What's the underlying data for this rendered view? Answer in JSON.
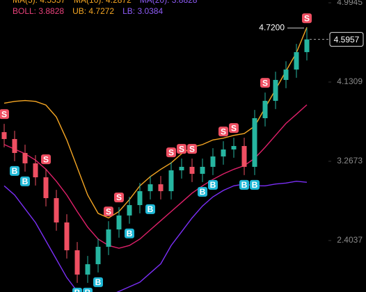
{
  "chart_data": {
    "type": "candlestick",
    "legend_rows": [
      [
        {
          "text": "MA(5): 4.5557",
          "color": "#f5a623"
        },
        {
          "text": "MA(10): 4.2872",
          "color": "#f5a623"
        },
        {
          "text": "MA(20): 3.8828",
          "color": "#8e5cf7"
        }
      ],
      [
        {
          "text": "BOLL: 3.8828",
          "color": "#e8417a"
        },
        {
          "text": "UB: 4.7272",
          "color": "#f5a623"
        },
        {
          "text": "LB: 3.0384",
          "color": "#8e5cf7"
        }
      ]
    ],
    "open": [
      3.585,
      3.51,
      3.358,
      3.245,
      3.093,
      2.866,
      2.601,
      2.298,
      2.033,
      2.146,
      2.336,
      2.525,
      2.677,
      2.79,
      2.942,
      3.017,
      2.942,
      3.169,
      3.207,
      3.131,
      3.207,
      3.32,
      3.396,
      3.434,
      3.207,
      3.737,
      3.926,
      4.154,
      4.267,
      4.457
    ],
    "high": [
      3.675,
      3.6,
      3.448,
      3.335,
      3.183,
      2.956,
      2.691,
      2.388,
      2.236,
      2.426,
      2.615,
      2.767,
      2.88,
      3.032,
      3.107,
      3.107,
      3.259,
      3.297,
      3.297,
      3.297,
      3.41,
      3.486,
      3.524,
      3.524,
      3.827,
      4.016,
      4.244,
      4.357,
      4.547,
      4.72
    ],
    "low": [
      3.42,
      3.268,
      3.155,
      3.003,
      2.776,
      2.511,
      2.208,
      1.943,
      1.943,
      2.056,
      2.246,
      2.435,
      2.587,
      2.7,
      2.852,
      2.852,
      2.852,
      3.079,
      3.041,
      3.041,
      3.117,
      3.23,
      3.306,
      3.117,
      3.117,
      3.647,
      3.836,
      4.064,
      4.177,
      4.367
    ],
    "close": [
      3.51,
      3.358,
      3.245,
      3.093,
      2.866,
      2.601,
      2.298,
      2.033,
      2.146,
      2.336,
      2.525,
      2.677,
      2.79,
      2.942,
      3.017,
      2.942,
      3.169,
      3.207,
      3.131,
      3.207,
      3.32,
      3.396,
      3.434,
      3.207,
      3.737,
      3.926,
      4.154,
      4.267,
      4.457,
      4.5957
    ],
    "up_color": "#26b5a0",
    "down_color": "#ef4f62",
    "series": [
      {
        "name": "UB",
        "color": "#f5a623",
        "values": [
          3.9,
          3.92,
          3.93,
          3.92,
          3.88,
          3.75,
          3.5,
          3.2,
          2.9,
          2.7,
          2.65,
          2.72,
          2.85,
          3.0,
          3.1,
          3.18,
          3.25,
          3.35,
          3.42,
          3.45,
          3.5,
          3.52,
          3.55,
          3.57,
          3.65,
          3.85,
          4.05,
          4.25,
          4.45,
          4.7272
        ]
      },
      {
        "name": "BOLL",
        "color": "#e0206a",
        "values": [
          3.45,
          3.4,
          3.35,
          3.28,
          3.18,
          3.05,
          2.9,
          2.72,
          2.55,
          2.42,
          2.35,
          2.32,
          2.35,
          2.42,
          2.52,
          2.62,
          2.72,
          2.82,
          2.92,
          3.0,
          3.07,
          3.13,
          3.18,
          3.22,
          3.3,
          3.42,
          3.55,
          3.68,
          3.78,
          3.8828
        ]
      },
      {
        "name": "LB",
        "color": "#7b2ff7",
        "values": [
          3.0,
          2.9,
          2.75,
          2.6,
          2.4,
          2.2,
          2.0,
          1.85,
          1.8,
          1.78,
          1.8,
          1.85,
          1.9,
          1.95,
          2.05,
          2.15,
          2.35,
          2.5,
          2.65,
          2.78,
          2.88,
          2.95,
          3.0,
          3.02,
          3.0,
          3.0,
          3.02,
          3.03,
          3.05,
          3.0384
        ]
      }
    ],
    "signals": [
      "S",
      "B",
      "B",
      null,
      "S",
      null,
      null,
      "B",
      "B",
      "B",
      "S",
      "S",
      "B",
      null,
      "B",
      null,
      "S",
      "S",
      "S",
      "B",
      "B",
      "S",
      "S",
      "B",
      "B",
      "S",
      null,
      null,
      null,
      "S"
    ],
    "sell_color": "#ef4f62",
    "buy_color": "#1fb8d6",
    "high_label": {
      "value": 4.72,
      "label": "4.7200"
    },
    "ylim": [
      1.8432,
      5.0248
    ],
    "yticks": [
      4.9945,
      4.1309,
      3.2673,
      2.4037
    ]
  }
}
